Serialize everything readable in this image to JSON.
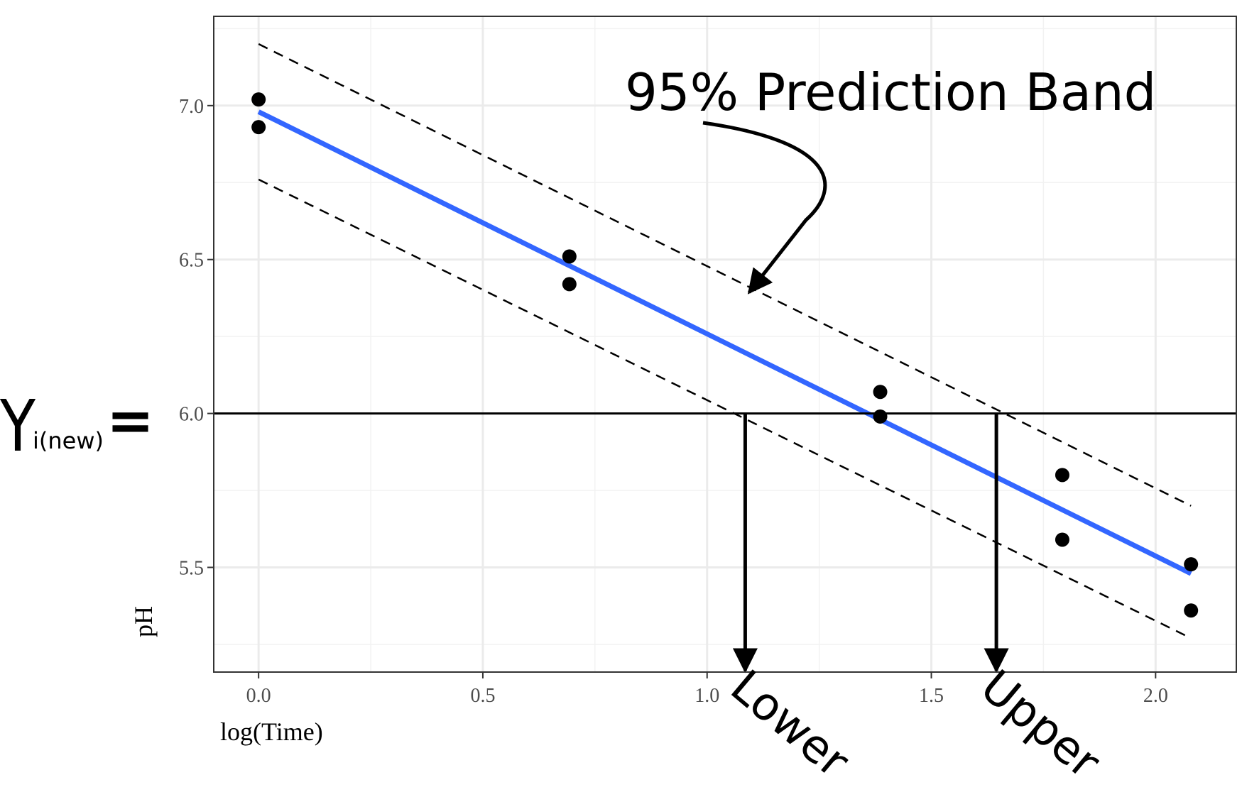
{
  "chart_data": {
    "type": "scatter",
    "xlabel": "log(Time)",
    "ylabel": "pH",
    "xlim": [
      -0.1,
      2.18
    ],
    "ylim": [
      5.16,
      7.29
    ],
    "x_ticks": [
      0.0,
      0.5,
      1.0,
      1.5,
      2.0
    ],
    "x_tick_labels": [
      "0.0",
      "0.5",
      "1.0",
      "1.5",
      "2.0"
    ],
    "y_ticks": [
      5.5,
      6.0,
      6.5,
      7.0
    ],
    "y_tick_labels": [
      "5.5",
      "6.0",
      "6.5",
      "7.0"
    ],
    "grid": true,
    "points": [
      {
        "x": 0.0,
        "y": 7.02
      },
      {
        "x": 0.0,
        "y": 6.93
      },
      {
        "x": 0.693,
        "y": 6.51
      },
      {
        "x": 0.693,
        "y": 6.42
      },
      {
        "x": 1.386,
        "y": 6.07
      },
      {
        "x": 1.386,
        "y": 5.99
      },
      {
        "x": 1.792,
        "y": 5.8
      },
      {
        "x": 1.792,
        "y": 5.59
      },
      {
        "x": 2.079,
        "y": 5.51
      },
      {
        "x": 2.079,
        "y": 5.36
      }
    ],
    "fit_line": {
      "color": "#3366ff",
      "x": [
        0.0,
        2.079
      ],
      "y": [
        6.98,
        5.48
      ]
    },
    "band_upper": {
      "x": [
        0.0,
        2.079
      ],
      "y": [
        7.2,
        5.7
      ]
    },
    "band_lower": {
      "x": [
        0.0,
        2.079
      ],
      "y": [
        6.76,
        5.27
      ]
    },
    "hline": {
      "y": 6.0
    },
    "lower_x": 1.085,
    "upper_x": 1.645
  },
  "annotations": {
    "band_label": "95% Prediction Band",
    "y_target_main": "Y",
    "y_target_sub": "i(new)",
    "y_target_eq": "=",
    "lower_label": "Lower",
    "upper_label": "Upper"
  }
}
